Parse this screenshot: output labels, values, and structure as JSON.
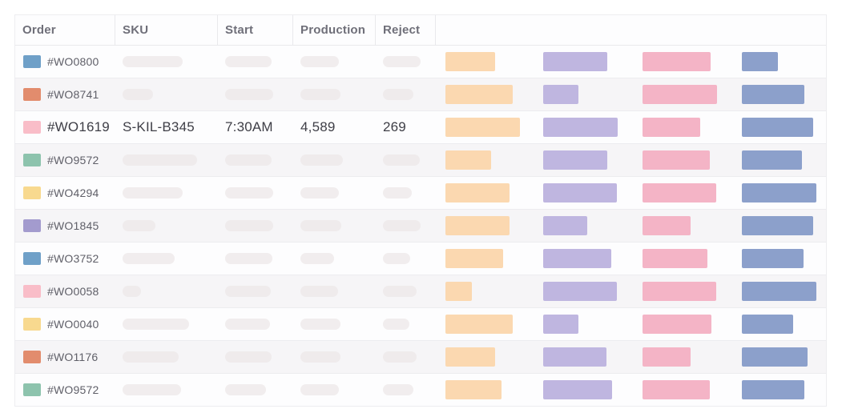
{
  "header": {
    "columns": [
      "Order",
      "SKU",
      "Start",
      "Production",
      "Reject"
    ]
  },
  "bar_colors": [
    "#fbd8b0",
    "#bfb6e0",
    "#f4b4c6",
    "#8ca0cb"
  ],
  "bar_names": [
    "orange",
    "purple",
    "pink",
    "blue"
  ],
  "rows": [
    {
      "order": "#WO0800",
      "swatch": "#6fa0c8",
      "focused": false,
      "cells": {
        "sku": null,
        "start": null,
        "production": null,
        "reject": null
      },
      "skeleton_widths": [
        75,
        58,
        48,
        47
      ],
      "bar_widths": [
        62,
        80,
        85,
        45
      ]
    },
    {
      "order": "#WO8741",
      "swatch": "#e28c6d",
      "focused": false,
      "cells": {
        "sku": null,
        "start": null,
        "production": null,
        "reject": null
      },
      "skeleton_widths": [
        38,
        60,
        50,
        38
      ],
      "bar_widths": [
        84,
        44,
        93,
        78
      ]
    },
    {
      "order": "#WO1619",
      "swatch": "#f9bdc8",
      "focused": true,
      "cells": {
        "sku": "S-KIL-B345",
        "start": "7:30AM",
        "production": "4,589",
        "reject": "269"
      },
      "skeleton_widths": [
        0,
        0,
        0,
        0
      ],
      "bar_widths": [
        93,
        93,
        72,
        89
      ]
    },
    {
      "order": "#WO9572",
      "swatch": "#8dc3ad",
      "focused": false,
      "cells": {
        "sku": null,
        "start": null,
        "production": null,
        "reject": null
      },
      "skeleton_widths": [
        93,
        58,
        53,
        46
      ],
      "bar_widths": [
        57,
        80,
        84,
        75
      ]
    },
    {
      "order": "#WO4294",
      "swatch": "#f8d98f",
      "focused": false,
      "cells": {
        "sku": null,
        "start": null,
        "production": null,
        "reject": null
      },
      "skeleton_widths": [
        75,
        60,
        48,
        36
      ],
      "bar_widths": [
        80,
        92,
        92,
        93
      ]
    },
    {
      "order": "#WO1845",
      "swatch": "#a39bce",
      "focused": false,
      "cells": {
        "sku": null,
        "start": null,
        "production": null,
        "reject": null
      },
      "skeleton_widths": [
        41,
        60,
        51,
        47
      ],
      "bar_widths": [
        80,
        55,
        60,
        89
      ]
    },
    {
      "order": "#WO3752",
      "swatch": "#6fa0c8",
      "focused": false,
      "cells": {
        "sku": null,
        "start": null,
        "production": null,
        "reject": null
      },
      "skeleton_widths": [
        65,
        59,
        42,
        34
      ],
      "bar_widths": [
        72,
        85,
        81,
        77
      ]
    },
    {
      "order": "#WO0058",
      "swatch": "#f9bdc8",
      "focused": false,
      "cells": {
        "sku": null,
        "start": null,
        "production": null,
        "reject": null
      },
      "skeleton_widths": [
        23,
        57,
        47,
        42
      ],
      "bar_widths": [
        33,
        92,
        92,
        93
      ]
    },
    {
      "order": "#WO0040",
      "swatch": "#f8d98f",
      "focused": false,
      "cells": {
        "sku": null,
        "start": null,
        "production": null,
        "reject": null
      },
      "skeleton_widths": [
        83,
        56,
        50,
        33
      ],
      "bar_widths": [
        84,
        44,
        86,
        64
      ]
    },
    {
      "order": "#WO1176",
      "swatch": "#e28c6d",
      "focused": false,
      "cells": {
        "sku": null,
        "start": null,
        "production": null,
        "reject": null
      },
      "skeleton_widths": [
        70,
        58,
        50,
        42
      ],
      "bar_widths": [
        62,
        79,
        60,
        82
      ]
    },
    {
      "order": "#WO9572",
      "swatch": "#8dc3ad",
      "focused": false,
      "cells": {
        "sku": null,
        "start": null,
        "production": null,
        "reject": null
      },
      "skeleton_widths": [
        73,
        51,
        48,
        38
      ],
      "bar_widths": [
        70,
        86,
        84,
        78
      ]
    }
  ]
}
